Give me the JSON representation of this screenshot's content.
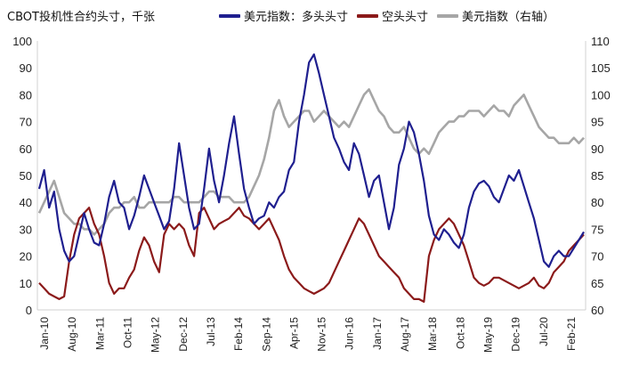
{
  "chart_data": {
    "type": "line",
    "title": "CBOT投机性合约头寸，千张",
    "x_ticks": [
      "Jan-10",
      "Aug-10",
      "Mar-11",
      "Oct-11",
      "May-12",
      "Dec-12",
      "Jul-13",
      "Feb-14",
      "Sep-14",
      "Apr-15",
      "Nov-15",
      "Jun-16",
      "Jan-17",
      "Aug-17",
      "Mar-18",
      "Oct-18",
      "May-19",
      "Dec-19",
      "Jul-20",
      "Feb-21"
    ],
    "left_axis": {
      "min": 0,
      "max": 100,
      "ticks": [
        0,
        10,
        20,
        30,
        40,
        50,
        60,
        70,
        80,
        90,
        100
      ]
    },
    "right_axis": {
      "min": 60,
      "max": 110,
      "ticks": [
        60,
        65,
        70,
        75,
        80,
        85,
        90,
        95,
        100,
        105,
        110
      ]
    },
    "series": [
      {
        "name": "美元指数：多头头寸",
        "axis": "left",
        "color": "#1f1f8f",
        "values": [
          45,
          52,
          38,
          44,
          30,
          22,
          18,
          20,
          28,
          36,
          30,
          25,
          24,
          32,
          42,
          48,
          40,
          38,
          30,
          35,
          42,
          50,
          45,
          40,
          35,
          30,
          33,
          45,
          62,
          50,
          38,
          30,
          32,
          45,
          60,
          48,
          40,
          50,
          62,
          72,
          58,
          45,
          38,
          32,
          34,
          35,
          40,
          38,
          42,
          44,
          52,
          55,
          70,
          80,
          92,
          95,
          88,
          80,
          72,
          64,
          60,
          55,
          52,
          62,
          58,
          50,
          42,
          48,
          50,
          40,
          30,
          38,
          54,
          60,
          70,
          66,
          58,
          48,
          35,
          28,
          26,
          30,
          28,
          25,
          23,
          28,
          38,
          44,
          47,
          48,
          46,
          42,
          40,
          45,
          50,
          48,
          52,
          46,
          40,
          34,
          26,
          18,
          16,
          20,
          22,
          20,
          20,
          23,
          26,
          29
        ]
      },
      {
        "name": "空头头寸",
        "axis": "left",
        "color": "#8b1a1a",
        "values": [
          10,
          8,
          6,
          5,
          4,
          5,
          18,
          28,
          34,
          36,
          38,
          32,
          28,
          20,
          10,
          6,
          8,
          8,
          12,
          15,
          22,
          27,
          24,
          18,
          14,
          28,
          32,
          30,
          32,
          30,
          24,
          20,
          36,
          38,
          34,
          30,
          32,
          33,
          34,
          36,
          38,
          35,
          34,
          32,
          30,
          32,
          34,
          30,
          26,
          20,
          15,
          12,
          10,
          8,
          7,
          6,
          7,
          8,
          10,
          14,
          18,
          22,
          26,
          30,
          34,
          32,
          28,
          24,
          20,
          18,
          16,
          14,
          12,
          8,
          6,
          4,
          4,
          3,
          20,
          26,
          30,
          32,
          34,
          32,
          28,
          24,
          18,
          12,
          10,
          9,
          10,
          12,
          12,
          11,
          10,
          9,
          8,
          9,
          10,
          12,
          9,
          8,
          10,
          14,
          16,
          18,
          22,
          24,
          26,
          28
        ]
      },
      {
        "name": "美元指数（右轴）",
        "axis": "right",
        "color": "#a6a6a6",
        "values": [
          78,
          80,
          82,
          84,
          81,
          78,
          77,
          76,
          76,
          75,
          75,
          74,
          75,
          76,
          78,
          79,
          79,
          80,
          80,
          81,
          79,
          79,
          80,
          80,
          80,
          80,
          80,
          81,
          81,
          80,
          80,
          80,
          80,
          81,
          82,
          82,
          81,
          81,
          81,
          80,
          80,
          80,
          81,
          83,
          85,
          88,
          92,
          97,
          99,
          96,
          94,
          95,
          96,
          97,
          97,
          95,
          96,
          97,
          96,
          95,
          94,
          95,
          94,
          96,
          98,
          100,
          101,
          99,
          97,
          96,
          94,
          93,
          93,
          94,
          92,
          90,
          89,
          90,
          89,
          91,
          93,
          94,
          95,
          95,
          96,
          96,
          97,
          97,
          97,
          96,
          97,
          98,
          97,
          97,
          96,
          98,
          99,
          100,
          98,
          96,
          94,
          93,
          92,
          92,
          91,
          91,
          91,
          92,
          91,
          92
        ]
      }
    ]
  }
}
